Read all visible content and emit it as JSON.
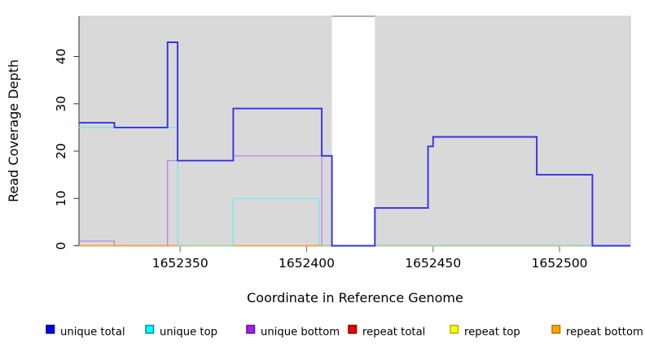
{
  "chart_data": {
    "type": "line",
    "subtype": "step",
    "title": "",
    "x_axis": {
      "label": "Coordinate in Reference Genome",
      "ticks": [
        1652350,
        1652400,
        1652450,
        1652500
      ],
      "range": [
        1652310,
        1652528
      ]
    },
    "y_axis": {
      "label": "Read Coverage Depth",
      "ticks": [
        0,
        10,
        20,
        30,
        40
      ],
      "range": [
        0,
        48.5
      ]
    },
    "plot_background": "#d9d9d9",
    "gap_region": {
      "x_start": 1652410,
      "x_end": 1652427,
      "fill": "#ffffff",
      "top_line": "#999999"
    },
    "series": [
      {
        "name": "unique total",
        "line_color": "#3431e8",
        "points": [
          [
            1652310,
            26
          ],
          [
            1652324,
            25
          ],
          [
            1652345,
            43
          ],
          [
            1652349,
            18
          ],
          [
            1652371,
            29
          ],
          [
            1652406,
            19
          ],
          [
            1652410,
            0
          ],
          [
            1652427,
            8
          ],
          [
            1652448,
            21
          ],
          [
            1652450,
            23
          ],
          [
            1652491,
            15
          ],
          [
            1652513,
            0
          ],
          [
            1652528,
            0
          ]
        ]
      },
      {
        "name": "unique top",
        "line_color": "#6cecec",
        "points": [
          [
            1652310,
            25
          ],
          [
            1652349,
            0
          ],
          [
            1652371,
            10
          ],
          [
            1652405,
            0
          ],
          [
            1652528,
            0
          ]
        ]
      },
      {
        "name": "unique bottom",
        "line_color": "#bc7ce4",
        "points": [
          [
            1652310,
            1
          ],
          [
            1652324,
            0
          ],
          [
            1652345,
            18
          ],
          [
            1652371,
            19
          ],
          [
            1652406,
            0
          ],
          [
            1652528,
            0
          ]
        ]
      },
      {
        "name": "repeat total",
        "line_color": "#ee3333",
        "points": [
          [
            1652310,
            0
          ],
          [
            1652528,
            0
          ]
        ]
      },
      {
        "name": "repeat top",
        "line_color": "#f0f080",
        "points": [
          [
            1652310,
            0
          ],
          [
            1652528,
            0
          ]
        ]
      },
      {
        "name": "repeat bottom",
        "line_color": "#ff9d1f",
        "points": [
          [
            1652310,
            0
          ],
          [
            1652528,
            0
          ]
        ]
      }
    ],
    "baseline_overlap_segments": [
      {
        "x_start": 1652349,
        "x_end": 1652371,
        "color": "#8edfa6"
      },
      {
        "x_start": 1652406,
        "x_end": 1652410,
        "color": "#8edfa6"
      },
      {
        "x_start": 1652427,
        "x_end": 1652528,
        "color": "#8edfa6"
      }
    ],
    "legend_position": "bottom"
  },
  "legend": {
    "items": [
      {
        "label": "unique total",
        "color": "#0000ee",
        "border": "#000090"
      },
      {
        "label": "unique top",
        "color": "#00ffff",
        "border": "#009999"
      },
      {
        "label": "unique bottom",
        "color": "#a020f0",
        "border": "#6a11a8"
      },
      {
        "label": "repeat total",
        "color": "#ee0000",
        "border": "#990000"
      },
      {
        "label": "repeat top",
        "color": "#ffff00",
        "border": "#b8b800"
      },
      {
        "label": "repeat bottom",
        "color": "#ffa500",
        "border": "#bb7a00"
      }
    ]
  }
}
